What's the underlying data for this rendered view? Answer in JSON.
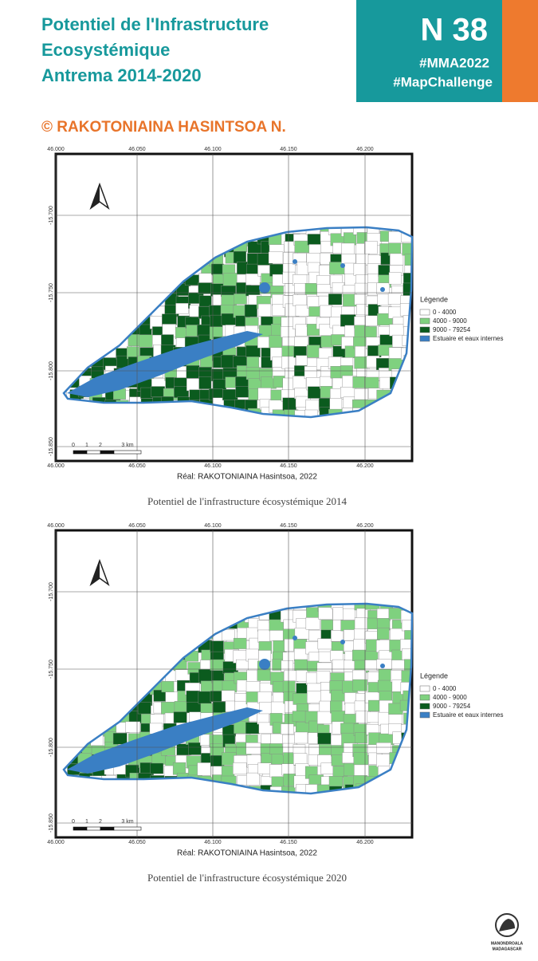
{
  "header": {
    "title_lines": [
      "Potentiel de l'Infrastructure",
      "Ecosystémique",
      "Antrema 2014-2020"
    ],
    "badge": "N 38",
    "tags": [
      "#MMA2022",
      "#MapChallenge"
    ],
    "author": "© RAKOTONIAINA HASINTSOA N."
  },
  "maps": [
    {
      "lon_ticks": [
        "46.000",
        "46.050",
        "46.100",
        "46.150",
        "46.200"
      ],
      "lat_ticks": [
        "-15.700",
        "-15.750",
        "-15.800",
        "-15.850"
      ],
      "legend": {
        "title": "Légende",
        "items": [
          "0 - 4000",
          "4000 - 9000",
          "9000 - 79254",
          "Estuaire et eaux internes"
        ]
      },
      "scale_labels": [
        "0",
        "1",
        "2",
        "3 km"
      ],
      "credit": "Réal: RAKOTONIAINA Hasintsoa, 2022",
      "caption": "Potentiel de l'infrastructure écosystémique 2014"
    },
    {
      "lon_ticks": [
        "46.000",
        "46.050",
        "46.100",
        "46.150",
        "46.200"
      ],
      "lat_ticks": [
        "-15.700",
        "-15.750",
        "-15.800",
        "-15.850"
      ],
      "legend": {
        "title": "Légende",
        "items": [
          "0 - 4000",
          "4000 - 9000",
          "9000 - 79254",
          "Estuaire et eaux internes"
        ]
      },
      "scale_labels": [
        "0",
        "1",
        "2",
        "3 km"
      ],
      "credit": "Réal: RAKOTONIAINA Hasintsoa, 2022",
      "caption": "Potentiel de l'infrastructure écosystémique 2020"
    }
  ],
  "logo": {
    "lines": [
      "MANONDROALA",
      "MADAGASCAR"
    ]
  }
}
